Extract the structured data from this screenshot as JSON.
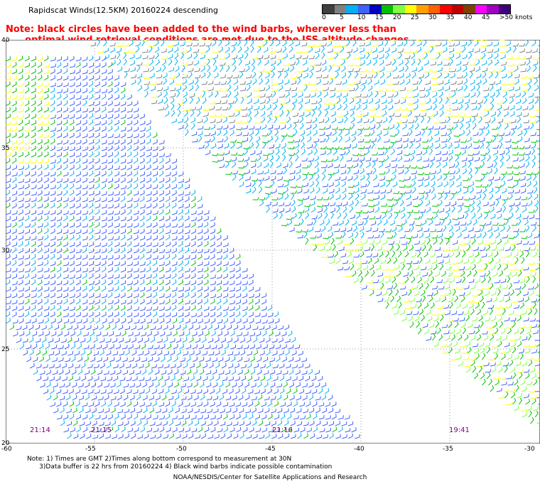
{
  "title": "Rapidscat Winds(12.5KM) 20160224 descending",
  "note": {
    "line1": "Note: black circles have been added to the wind barbs, wherever less than",
    "line2": "      optimal wind retrieval conditions are met due to the ISS altitude changes."
  },
  "legend": {
    "labels": [
      "0",
      "5",
      "10",
      "15",
      "20",
      "25",
      "30",
      "35",
      "40",
      "45",
      ">50 knots"
    ],
    "colors": [
      "#404040",
      "#808080",
      "#00b0f0",
      "#4060ff",
      "#0000c0",
      "#00c000",
      "#80ff40",
      "#ffff00",
      "#ffa000",
      "#ff6000",
      "#ff0000",
      "#c00000",
      "#804000",
      "#ff00ff",
      "#a000c0",
      "#400080"
    ]
  },
  "axes": {
    "lat_labels": [
      "40",
      "35",
      "30",
      "25",
      "20"
    ],
    "lon_labels": [
      "-60",
      "-55",
      "-50",
      "-45",
      "-40",
      "-35",
      "-30"
    ]
  },
  "pass_times": [
    "21:14",
    "21:15",
    "21:16",
    "19:41"
  ],
  "footer": {
    "line1": "Note: 1) Times are GMT 2)Times along bottom correspond to measurement at 30N",
    "line2": "      3)Data buffer is 22 hrs from 20160224 4) Black wind barbs indicate possible contamination"
  },
  "credit": "NOAA/NESDIS/Center for Satellite Applications and Research"
}
